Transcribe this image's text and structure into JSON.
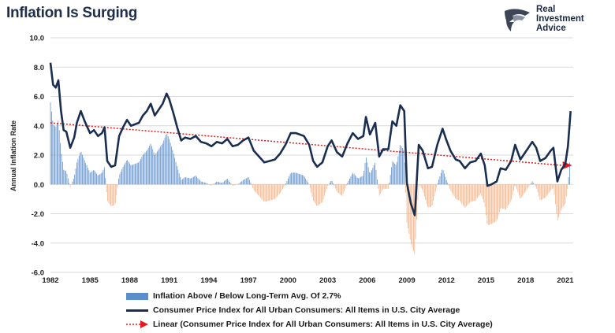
{
  "chart_data": {
    "type": "bar+line",
    "title": "Inflation Is Surging",
    "ylabel": "Annual Inflation Rate",
    "xlabel": "",
    "ylim": [
      -6.0,
      10.0
    ],
    "yticks": [
      "10.0",
      "8.0",
      "6.0",
      "4.0",
      "2.0",
      "0.0",
      "-2.0",
      "-4.0",
      "-6.0"
    ],
    "xlim": [
      1982,
      2021.6
    ],
    "xticks": [
      "1982",
      "1985",
      "1988",
      "1991",
      "1994",
      "1997",
      "2000",
      "2003",
      "2006",
      "2009",
      "2012",
      "2015",
      "2018",
      "2021"
    ],
    "long_term_avg": 2.7,
    "grid": true,
    "legend_position": "bottom",
    "series": [
      {
        "name": "Inflation Above / Below Long-Term Avg. Of 2.7%",
        "kind": "bar",
        "color": "#5b8fcb",
        "negative_color": "#f4b183"
      },
      {
        "name": "Consumer Price Index for All Urban Consumers: All Items in U.S. City Average",
        "kind": "line",
        "color": "#1a2e4f",
        "x": [
          1982.0,
          1982.2,
          1982.4,
          1982.6,
          1982.8,
          1983.0,
          1983.2,
          1983.5,
          1983.8,
          1984.0,
          1984.3,
          1984.6,
          1985.0,
          1985.3,
          1985.6,
          1985.9,
          1986.1,
          1986.3,
          1986.6,
          1986.9,
          1987.2,
          1987.5,
          1987.8,
          1988.1,
          1988.4,
          1988.7,
          1989.0,
          1989.3,
          1989.6,
          1989.9,
          1990.2,
          1990.5,
          1990.8,
          1991.0,
          1991.3,
          1991.6,
          1991.9,
          1992.2,
          1992.6,
          1993.0,
          1993.4,
          1993.8,
          1994.2,
          1994.6,
          1995.0,
          1995.4,
          1995.8,
          1996.2,
          1996.6,
          1997.0,
          1997.4,
          1997.8,
          1998.2,
          1998.6,
          1999.0,
          1999.4,
          1999.8,
          2000.2,
          2000.6,
          2000.9,
          2001.2,
          2001.6,
          2001.9,
          2002.2,
          2002.6,
          2003.0,
          2003.3,
          2003.7,
          2004.1,
          2004.5,
          2004.9,
          2005.3,
          2005.7,
          2005.9,
          2006.2,
          2006.6,
          2006.9,
          2007.2,
          2007.6,
          2007.9,
          2008.2,
          2008.5,
          2008.8,
          2009.0,
          2009.3,
          2009.6,
          2009.9,
          2010.2,
          2010.6,
          2010.9,
          2011.3,
          2011.7,
          2012.0,
          2012.3,
          2012.7,
          2013.0,
          2013.4,
          2013.8,
          2014.2,
          2014.6,
          2014.9,
          2015.1,
          2015.4,
          2015.8,
          2016.1,
          2016.5,
          2016.9,
          2017.2,
          2017.6,
          2017.9,
          2018.2,
          2018.5,
          2018.8,
          2019.1,
          2019.5,
          2019.9,
          2020.1,
          2020.4,
          2020.7,
          2021.0,
          2021.2,
          2021.4
        ],
        "values": [
          8.3,
          6.8,
          6.6,
          7.1,
          5.0,
          3.7,
          3.6,
          2.5,
          3.2,
          4.2,
          5.0,
          4.3,
          3.5,
          3.7,
          3.3,
          3.5,
          3.9,
          1.6,
          1.2,
          1.3,
          3.3,
          3.9,
          4.4,
          4.0,
          4.1,
          4.2,
          4.7,
          5.0,
          5.5,
          4.7,
          5.1,
          5.5,
          6.2,
          5.8,
          4.9,
          3.9,
          3.0,
          3.2,
          3.1,
          3.3,
          2.9,
          2.8,
          2.6,
          2.9,
          2.8,
          3.1,
          2.6,
          2.7,
          3.0,
          3.2,
          2.3,
          1.9,
          1.5,
          1.6,
          1.7,
          2.1,
          2.7,
          3.5,
          3.5,
          3.4,
          3.3,
          2.7,
          1.6,
          1.2,
          1.5,
          2.6,
          3.0,
          2.2,
          1.9,
          2.8,
          3.5,
          3.1,
          3.3,
          4.6,
          3.4,
          4.2,
          1.9,
          2.4,
          2.4,
          4.3,
          4.0,
          5.4,
          5.0,
          0.1,
          -1.3,
          -2.1,
          2.7,
          2.3,
          1.1,
          1.2,
          2.7,
          3.8,
          3.0,
          2.3,
          1.7,
          1.6,
          1.1,
          1.5,
          1.6,
          2.1,
          1.3,
          -0.1,
          0.0,
          0.2,
          1.1,
          1.0,
          1.6,
          2.7,
          1.7,
          2.1,
          2.5,
          2.9,
          2.5,
          1.6,
          1.8,
          2.3,
          2.5,
          0.2,
          1.0,
          1.4,
          2.6,
          5.0
        ]
      },
      {
        "name": "Linear (Consumer Price Index for All Urban Consumers: All Items in U.S. City Average)",
        "kind": "trendline",
        "color": "#e31a1c",
        "x": [
          1982.0,
          2021.4
        ],
        "values": [
          4.2,
          1.3
        ]
      }
    ]
  }
}
